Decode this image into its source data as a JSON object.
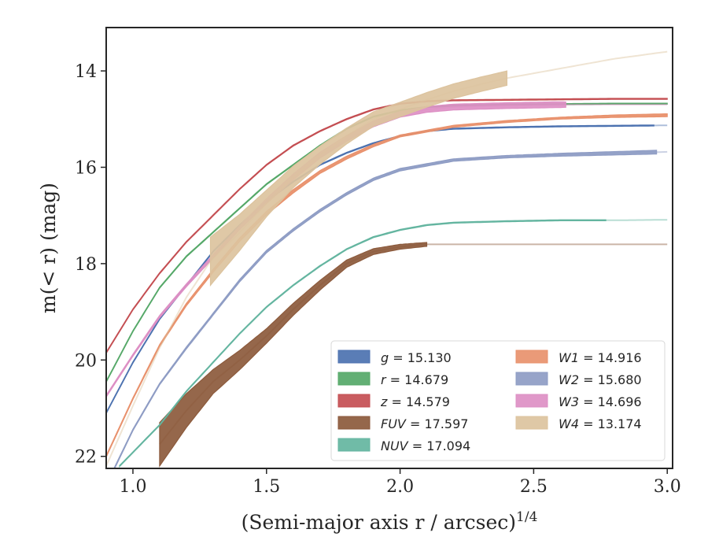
{
  "chart_data": {
    "type": "area",
    "title": "",
    "xlabel": "(Semi-major axis r / arcsec)",
    "xlabel_superscript": "1/4",
    "ylabel": "m(< r) (mag)",
    "xlim": [
      0.9,
      3.02
    ],
    "ylim": [
      22.25,
      13.1
    ],
    "y_inverted": true,
    "grid": false,
    "legend_placement": "lower right",
    "legend_columns": 2,
    "x_ticks": [
      1.0,
      1.5,
      2.0,
      2.5,
      3.0
    ],
    "x_tick_labels": [
      "1.0",
      "1.5",
      "2.0",
      "2.5",
      "3.0"
    ],
    "y_ticks": [
      14,
      16,
      18,
      20,
      22
    ],
    "y_tick_labels": [
      "14",
      "16",
      "18",
      "20",
      "22"
    ],
    "series": [
      {
        "key": "g",
        "name": "g = 15.130",
        "name_symbol": "g",
        "name_value": "15.130",
        "color": "#4c72b0",
        "band_end": 2.95,
        "x": [
          0.9,
          1.0,
          1.1,
          1.2,
          1.3,
          1.4,
          1.5,
          1.6,
          1.7,
          1.8,
          1.9,
          2.0,
          2.1,
          2.2,
          2.4,
          2.6,
          2.8,
          3.0
        ],
        "y": [
          21.1,
          20.05,
          19.15,
          18.45,
          17.75,
          17.2,
          16.7,
          16.3,
          15.95,
          15.7,
          15.5,
          15.35,
          15.25,
          15.2,
          15.17,
          15.15,
          15.14,
          15.13
        ],
        "width": [
          0.02,
          0.02,
          0.02,
          0.02,
          0.02,
          0.02,
          0.02,
          0.02,
          0.02,
          0.02,
          0.02,
          0.02,
          0.02,
          0.02,
          0.02,
          0.02,
          0.02,
          0.02
        ]
      },
      {
        "key": "r",
        "name": "r = 14.679",
        "name_symbol": "r",
        "name_value": "14.679",
        "color": "#55a868",
        "band_end": 3.0,
        "x": [
          0.9,
          1.0,
          1.1,
          1.2,
          1.3,
          1.4,
          1.5,
          1.6,
          1.7,
          1.8,
          1.9,
          2.0,
          2.1,
          2.2,
          2.4,
          2.6,
          2.8,
          3.0
        ],
        "y": [
          20.45,
          19.4,
          18.5,
          17.85,
          17.35,
          16.85,
          16.35,
          15.95,
          15.55,
          15.2,
          14.95,
          14.82,
          14.75,
          14.72,
          14.7,
          14.69,
          14.68,
          14.68
        ],
        "width": [
          0.02,
          0.02,
          0.02,
          0.02,
          0.02,
          0.02,
          0.02,
          0.02,
          0.02,
          0.02,
          0.02,
          0.02,
          0.02,
          0.02,
          0.02,
          0.02,
          0.02,
          0.02
        ]
      },
      {
        "key": "z",
        "name": "z = 14.579",
        "name_symbol": "z",
        "name_value": "14.579",
        "color": "#c44e52",
        "band_end": 3.0,
        "x": [
          0.9,
          1.0,
          1.1,
          1.2,
          1.3,
          1.4,
          1.5,
          1.6,
          1.7,
          1.8,
          1.9,
          2.0,
          2.1,
          2.2,
          2.4,
          2.6,
          2.8,
          3.0
        ],
        "y": [
          19.85,
          18.95,
          18.2,
          17.55,
          17.0,
          16.45,
          15.95,
          15.55,
          15.25,
          15.0,
          14.8,
          14.68,
          14.63,
          14.61,
          14.6,
          14.59,
          14.58,
          14.58
        ],
        "width": [
          0.02,
          0.02,
          0.02,
          0.02,
          0.02,
          0.02,
          0.02,
          0.02,
          0.02,
          0.02,
          0.02,
          0.02,
          0.02,
          0.02,
          0.02,
          0.02,
          0.02,
          0.02
        ]
      },
      {
        "key": "FUV",
        "name": "FUV = 17.597",
        "name_symbol": "FUV",
        "name_value": "17.597",
        "color": "#8c5a3c",
        "band_start": 1.1,
        "band_end": 2.1,
        "x": [
          1.1,
          1.2,
          1.3,
          1.4,
          1.5,
          1.6,
          1.7,
          1.8,
          1.9,
          2.0,
          2.1,
          2.4,
          2.7,
          3.0
        ],
        "y": [
          21.75,
          21.05,
          20.45,
          20.0,
          19.5,
          18.95,
          18.45,
          18.0,
          17.75,
          17.65,
          17.6,
          17.6,
          17.6,
          17.6
        ],
        "width": [
          0.9,
          0.7,
          0.5,
          0.4,
          0.3,
          0.25,
          0.2,
          0.15,
          0.12,
          0.1,
          0.08,
          0.02,
          0.02,
          0.02
        ]
      },
      {
        "key": "NUV",
        "name": "NUV = 17.094",
        "name_symbol": "NUV",
        "name_value": "17.094",
        "color": "#64b5a0",
        "band_end": 2.77,
        "x": [
          0.95,
          1.1,
          1.2,
          1.3,
          1.4,
          1.5,
          1.6,
          1.7,
          1.8,
          1.9,
          2.0,
          2.1,
          2.2,
          2.4,
          2.6,
          2.8,
          3.0
        ],
        "y": [
          22.2,
          21.35,
          20.65,
          20.05,
          19.45,
          18.9,
          18.45,
          18.05,
          17.7,
          17.45,
          17.3,
          17.2,
          17.15,
          17.12,
          17.1,
          17.1,
          17.09
        ],
        "width": [
          0.02,
          0.02,
          0.02,
          0.02,
          0.02,
          0.02,
          0.02,
          0.02,
          0.02,
          0.02,
          0.02,
          0.02,
          0.02,
          0.02,
          0.02,
          0.02,
          0.02
        ]
      },
      {
        "key": "W1",
        "name": "W1 = 14.916",
        "name_symbol": "W1",
        "name_value": "14.916",
        "color": "#e8916c",
        "band_end": 3.0,
        "x": [
          0.9,
          1.0,
          1.1,
          1.2,
          1.3,
          1.4,
          1.5,
          1.6,
          1.7,
          1.8,
          1.9,
          2.0,
          2.2,
          2.4,
          2.6,
          2.8,
          3.0
        ],
        "y": [
          22.0,
          20.8,
          19.7,
          18.85,
          18.15,
          17.5,
          16.95,
          16.5,
          16.1,
          15.8,
          15.55,
          15.35,
          15.15,
          15.05,
          14.98,
          14.94,
          14.92
        ],
        "width": [
          0.03,
          0.03,
          0.04,
          0.05,
          0.06,
          0.07,
          0.07,
          0.07,
          0.06,
          0.06,
          0.05,
          0.04,
          0.04,
          0.04,
          0.04,
          0.05,
          0.06
        ]
      },
      {
        "key": "W2",
        "name": "W2 = 15.680",
        "name_symbol": "W2",
        "name_value": "15.680",
        "color": "#8e9cc4",
        "band_end": 2.96,
        "x": [
          0.9,
          1.0,
          1.1,
          1.2,
          1.3,
          1.4,
          1.5,
          1.6,
          1.7,
          1.8,
          1.9,
          2.0,
          2.2,
          2.4,
          2.6,
          2.8,
          3.0
        ],
        "y": [
          22.6,
          21.45,
          20.5,
          19.75,
          19.05,
          18.35,
          17.75,
          17.3,
          16.9,
          16.55,
          16.25,
          16.05,
          15.85,
          15.78,
          15.74,
          15.71,
          15.68
        ],
        "width": [
          0.03,
          0.03,
          0.03,
          0.04,
          0.04,
          0.05,
          0.05,
          0.05,
          0.05,
          0.05,
          0.05,
          0.05,
          0.05,
          0.05,
          0.06,
          0.07,
          0.08
        ]
      },
      {
        "key": "W3",
        "name": "W3 = 14.696",
        "name_symbol": "W3",
        "name_value": "14.696",
        "color": "#dd8fc4",
        "band_end": 2.62,
        "x": [
          0.9,
          1.0,
          1.1,
          1.2,
          1.3,
          1.4,
          1.5,
          1.6,
          1.7,
          1.8,
          1.9,
          2.0,
          2.1,
          2.2,
          2.4,
          2.6,
          2.8,
          3.0
        ],
        "y": [
          20.75,
          19.9,
          19.1,
          18.45,
          17.85,
          17.25,
          16.7,
          16.2,
          15.75,
          15.4,
          15.1,
          14.9,
          14.8,
          14.75,
          14.72,
          14.7,
          14.7,
          14.7
        ],
        "width": [
          0.04,
          0.04,
          0.05,
          0.06,
          0.07,
          0.08,
          0.1,
          0.12,
          0.12,
          0.12,
          0.12,
          0.12,
          0.12,
          0.12,
          0.12,
          0.12,
          0.02,
          0.02
        ]
      },
      {
        "key": "W4",
        "name": "W4 = 13.174",
        "name_symbol": "W4",
        "name_value": "13.174",
        "color": "#dcc39e",
        "band_start": 1.29,
        "band_end": 2.4,
        "x": [
          0.9,
          1.0,
          1.1,
          1.2,
          1.29,
          1.4,
          1.5,
          1.6,
          1.7,
          1.8,
          1.9,
          2.0,
          2.1,
          2.2,
          2.3,
          2.4,
          2.6,
          2.8,
          3.0
        ],
        "y": [
          22.2,
          20.95,
          19.75,
          18.7,
          17.95,
          17.35,
          16.75,
          16.2,
          15.75,
          15.35,
          15.0,
          14.8,
          14.6,
          14.42,
          14.28,
          14.15,
          13.95,
          13.75,
          13.6
        ],
        "width": [
          0.02,
          0.02,
          0.02,
          0.02,
          1.0,
          0.75,
          0.55,
          0.45,
          0.38,
          0.33,
          0.3,
          0.3,
          0.3,
          0.3,
          0.3,
          0.3,
          0.02,
          0.02,
          0.02
        ]
      }
    ]
  }
}
